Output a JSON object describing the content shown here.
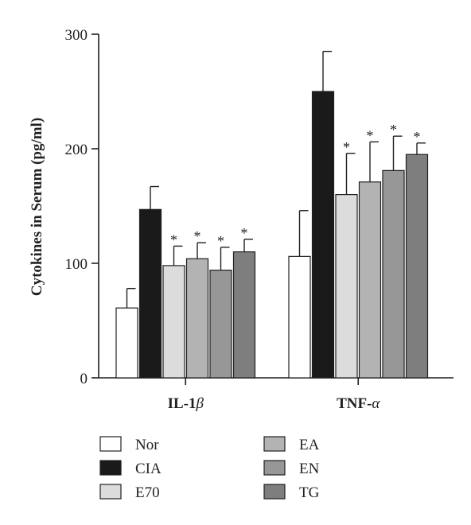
{
  "chart_data": {
    "type": "bar",
    "ylabel": "Cytokines in Serum (pg/ml)",
    "ylim": [
      0,
      300
    ],
    "yticks": [
      "0",
      "100",
      "200",
      "300"
    ],
    "categories": [
      {
        "name": "IL-1",
        "greek": "β"
      },
      {
        "name": "TNF-",
        "greek": "α"
      }
    ],
    "significance_marker": "*",
    "series": [
      {
        "name": "Nor",
        "color": "#ffffff",
        "values": [
          61,
          106
        ],
        "errors": [
          17,
          40
        ],
        "significant": [
          false,
          false
        ]
      },
      {
        "name": "CIA",
        "color": "#1a1a1a",
        "values": [
          147,
          250
        ],
        "errors": [
          20,
          35
        ],
        "significant": [
          false,
          false
        ]
      },
      {
        "name": "E70",
        "color": "#dcdcdc",
        "values": [
          98,
          160
        ],
        "errors": [
          17,
          36
        ],
        "significant": [
          true,
          true
        ]
      },
      {
        "name": "EA",
        "color": "#b3b3b3",
        "values": [
          104,
          171
        ],
        "errors": [
          14,
          35
        ],
        "significant": [
          true,
          true
        ]
      },
      {
        "name": "EN",
        "color": "#979797",
        "values": [
          94,
          181
        ],
        "errors": [
          20,
          30
        ],
        "significant": [
          true,
          true
        ]
      },
      {
        "name": "TG",
        "color": "#7e7e7e",
        "values": [
          110,
          195
        ],
        "errors": [
          11,
          10
        ],
        "significant": [
          true,
          true
        ]
      }
    ],
    "legend_position": "bottom-two-columns",
    "grid": false
  }
}
